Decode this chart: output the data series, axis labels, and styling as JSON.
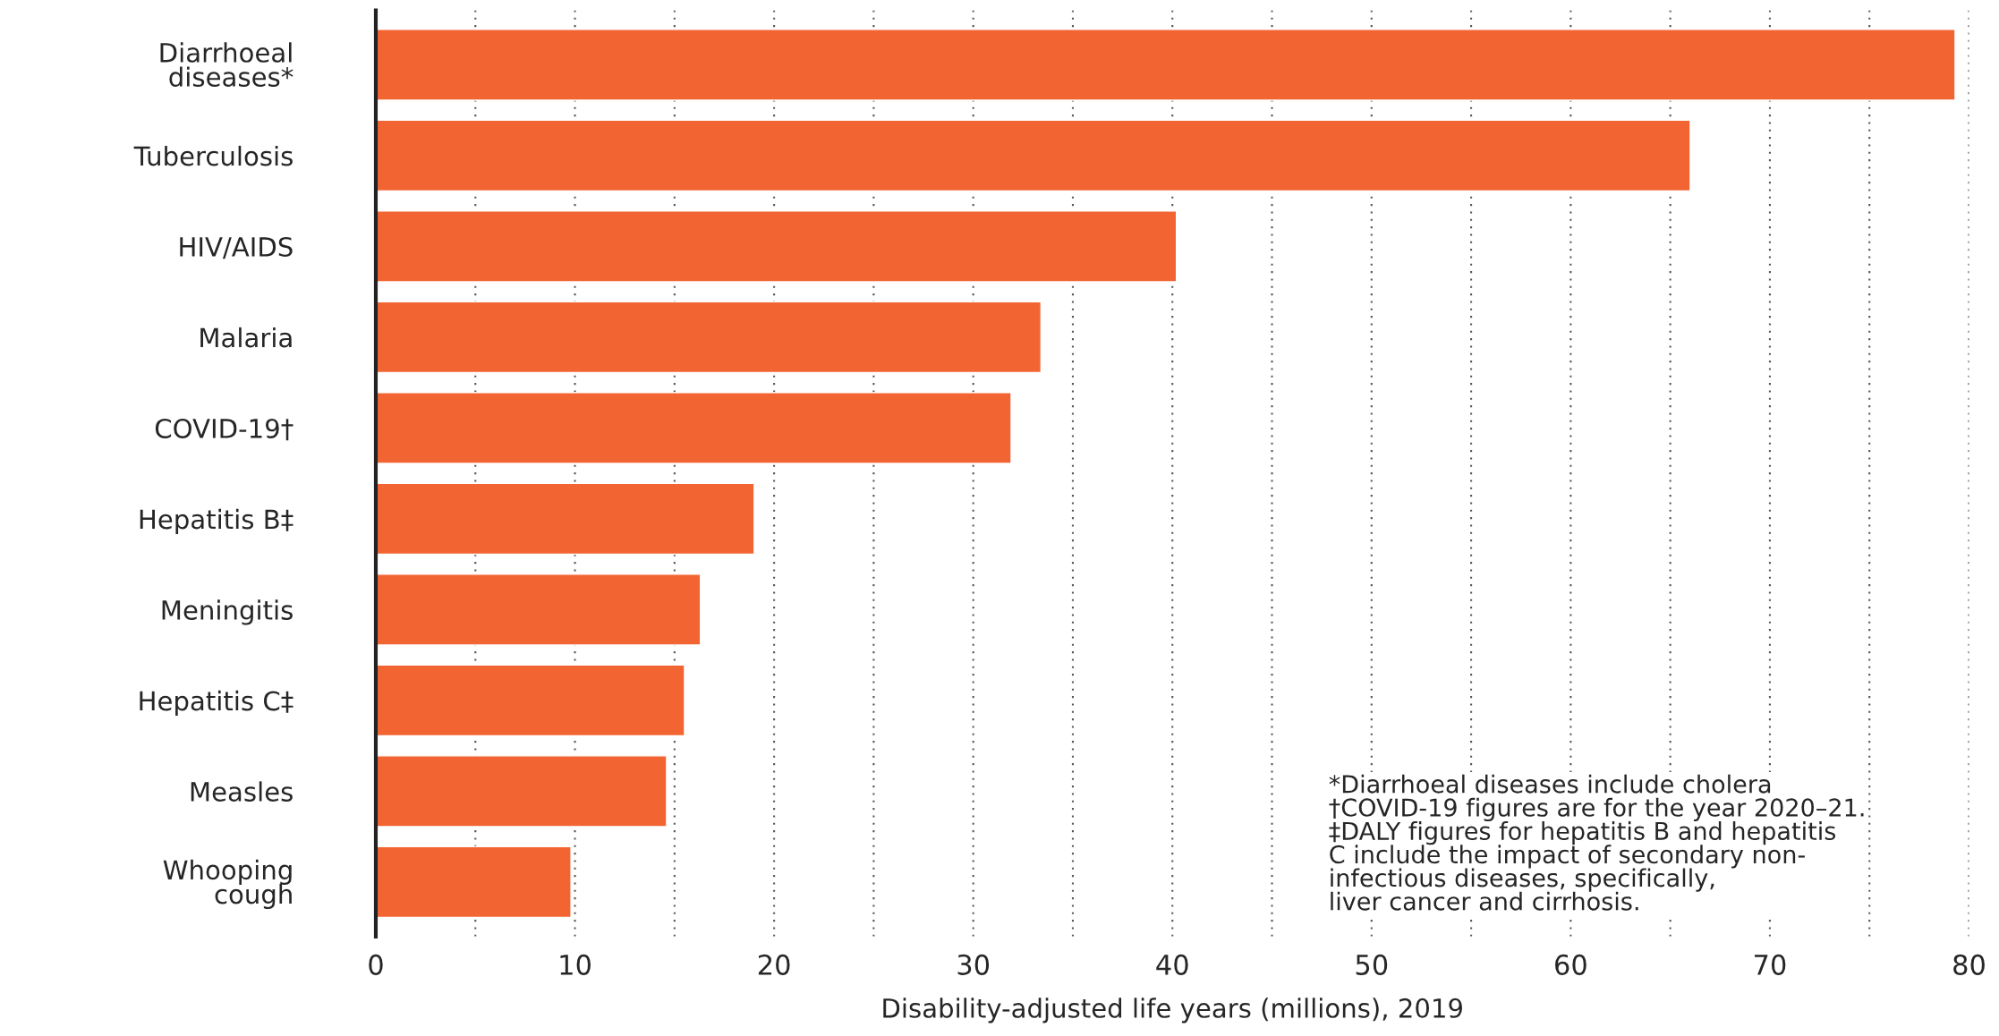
{
  "chart_data": {
    "type": "bar",
    "orientation": "horizontal",
    "categories": [
      "Diarrhoeal\ndiseases*",
      "Tuberculosis",
      "HIV/AIDS",
      "Malaria",
      "COVID-19†",
      "Hepatitis B‡",
      "Meningitis",
      "Hepatitis C‡",
      "Measles",
      "Whooping\ncough"
    ],
    "values": [
      79.3,
      66.0,
      40.2,
      33.4,
      31.9,
      19.0,
      16.3,
      15.5,
      14.6,
      9.8
    ],
    "color": "#f26532",
    "xlabel": "Disability-adjusted life years (millions), 2019",
    "xlim": [
      0,
      80
    ],
    "xticks": [
      0,
      {
        "value": 5,
        "label": null
      },
      10,
      {
        "value": 15,
        "label": null
      },
      20,
      {
        "value": 25,
        "label": null
      },
      30,
      {
        "value": 35,
        "label": null
      },
      40,
      {
        "value": 45,
        "label": null
      },
      50,
      {
        "value": 55,
        "label": null
      },
      60,
      {
        "value": 65,
        "label": null
      },
      70,
      {
        "value": 75,
        "label": null
      },
      80
    ],
    "grid": "x",
    "annotations": [
      "*Diarrhoeal diseases include cholera\n†COVID-19 figures are for the year 2020–21.\n‡DALY figures for hepatitis B and hepatitis\nC include the impact of secondary non-\ninfectious diseases, specifically,\nliver cancer and cirrhosis."
    ]
  }
}
